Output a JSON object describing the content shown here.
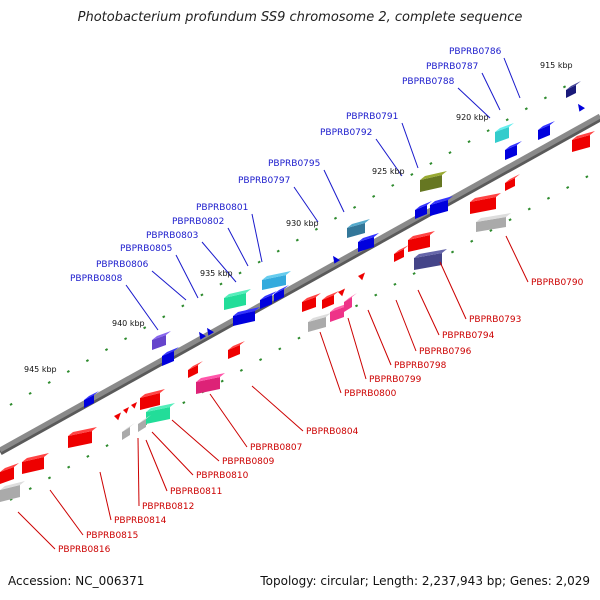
{
  "title": "Photobacterium profundum SS9 chromosome 2, complete sequence",
  "footer": {
    "accession": "Accession: NC_006371",
    "topology": "Topology: circular; Length: 2,237,943 bp; Genes: 2,029"
  },
  "colors": {
    "upper_label": "#1a1acc",
    "lower_label": "#cc0000",
    "backbone": "#8a8a8a",
    "tick_dash": "#2e8b2e"
  },
  "scale_ticks": [
    "915 kbp",
    "920 kbp",
    "925 kbp",
    "930 kbp",
    "935 kbp",
    "940 kbp",
    "945 kbp"
  ],
  "upper_labels": [
    "PBPRB0786",
    "PBPRB0787",
    "PBPRB0788",
    "PBPRB0791",
    "PBPRB0792",
    "PBPRB0795",
    "PBPRB0797",
    "PBPRB0801",
    "PBPRB0802",
    "PBPRB0803",
    "PBPRB0805",
    "PBPRB0806",
    "PBPRB0808"
  ],
  "lower_labels": [
    "PBPRB0790",
    "PBPRB0793",
    "PBPRB0794",
    "PBPRB0796",
    "PBPRB0798",
    "PBPRB0799",
    "PBPRB0800",
    "PBPRB0804",
    "PBPRB0807",
    "PBPRB0809",
    "PBPRB0810",
    "PBPRB0811",
    "PBPRB0812",
    "PBPRB0814",
    "PBPRB0815",
    "PBPRB0816"
  ]
}
